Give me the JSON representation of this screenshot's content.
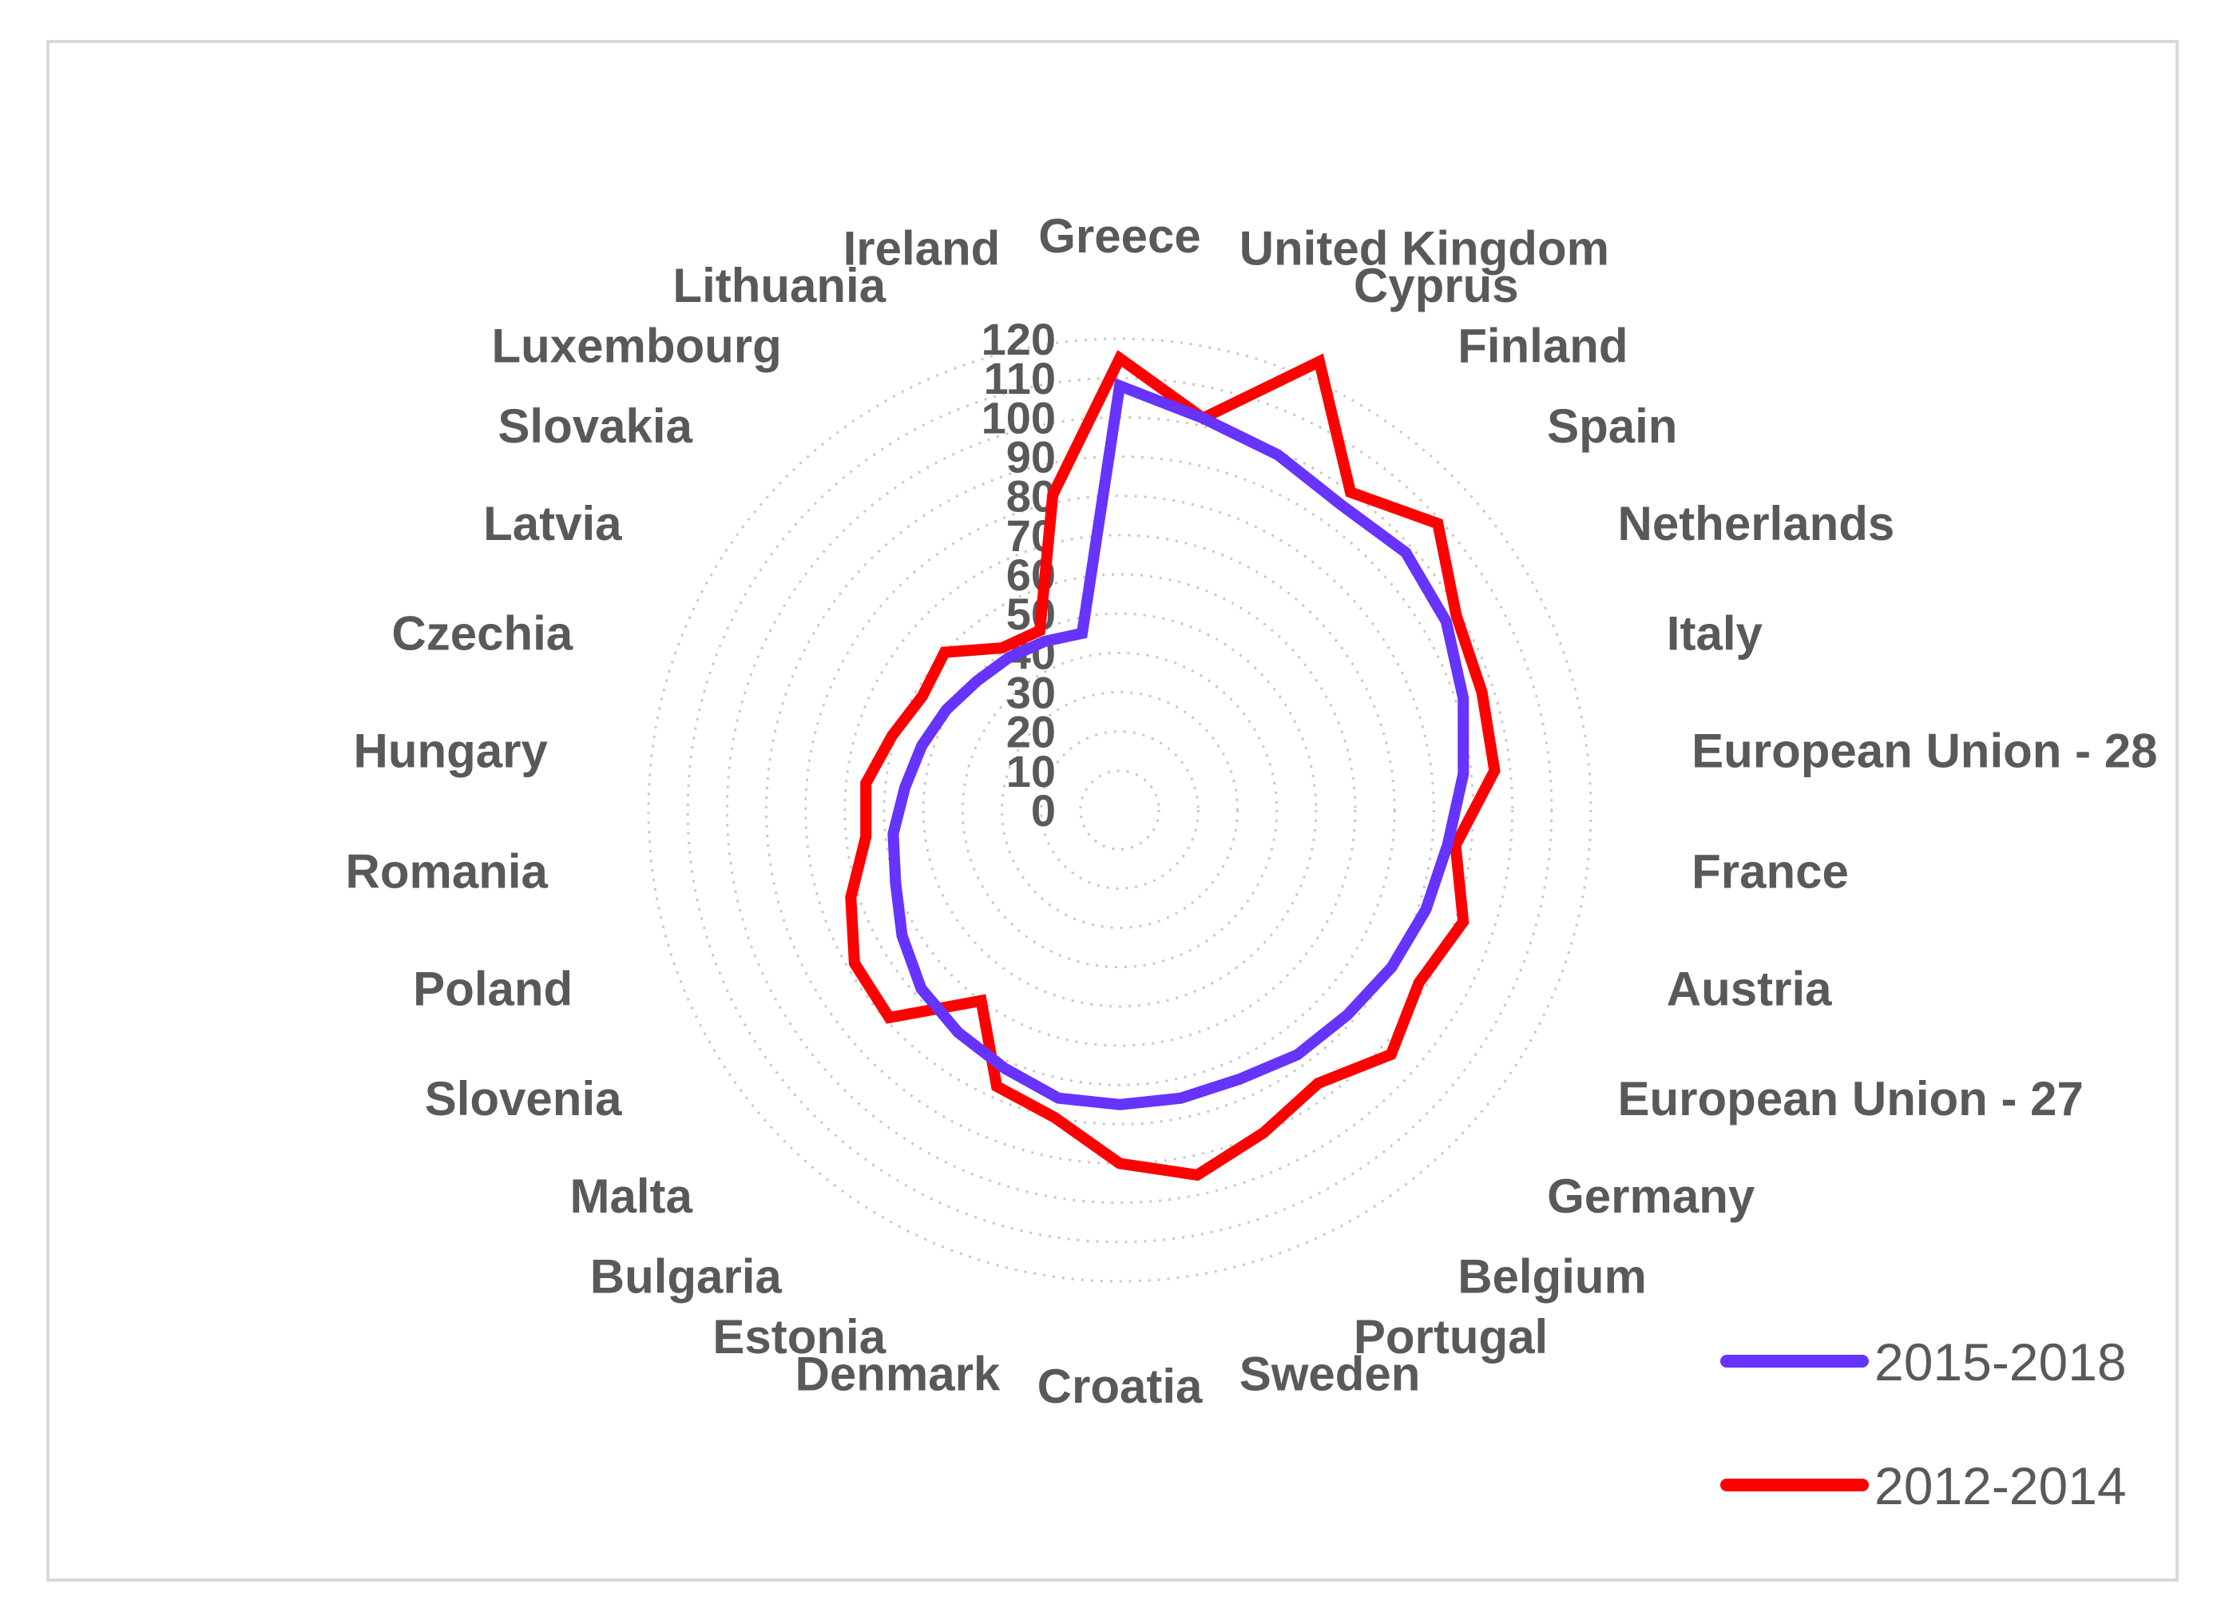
{
  "chart_data": {
    "type": "radar",
    "title": "",
    "categories": [
      "Greece",
      "United Kingdom",
      "Cyprus",
      "Finland",
      "Spain",
      "Netherlands",
      "Italy",
      "European Union - 28",
      "France",
      "Austria",
      "European Union - 27",
      "Germany",
      "Belgium",
      "Portugal",
      "Sweden",
      "Croatia",
      "Denmark",
      "Estonia",
      "Bulgaria",
      "Malta",
      "Slovenia",
      "Poland",
      "Romania",
      "Hungary",
      "Czechia",
      "Latvia",
      "Slovakia",
      "Luxembourg",
      "Lithuania",
      "Ireland"
    ],
    "rlim": [
      0,
      120
    ],
    "r_ticks": [
      "0",
      "10",
      "20",
      "30",
      "40",
      "50",
      "60",
      "70",
      "80",
      "90",
      "100",
      "110",
      "120"
    ],
    "grid": true,
    "legend_position": "bottom-right",
    "series": [
      {
        "name": "2015-2018",
        "color": "#6633ff",
        "values": [
          108,
          102,
          99,
          96,
          98,
          96,
          92,
          88,
          84,
          82,
          80,
          78,
          77,
          75,
          75,
          75,
          75,
          72,
          70,
          68,
          64,
          60,
          58,
          55,
          53,
          51,
          49,
          48,
          47,
          46
        ]
      },
      {
        "name": "2012-2014",
        "color": "#ff0000",
        "values": [
          115,
          102,
          125,
          100,
          109,
          99,
          97,
          96,
          86,
          92,
          88,
          93,
          86,
          90,
          95,
          90,
          80,
          77,
          60,
          79,
          78,
          72,
          65,
          65,
          61,
          58,
          60,
          51,
          50,
          82
        ]
      }
    ]
  }
}
